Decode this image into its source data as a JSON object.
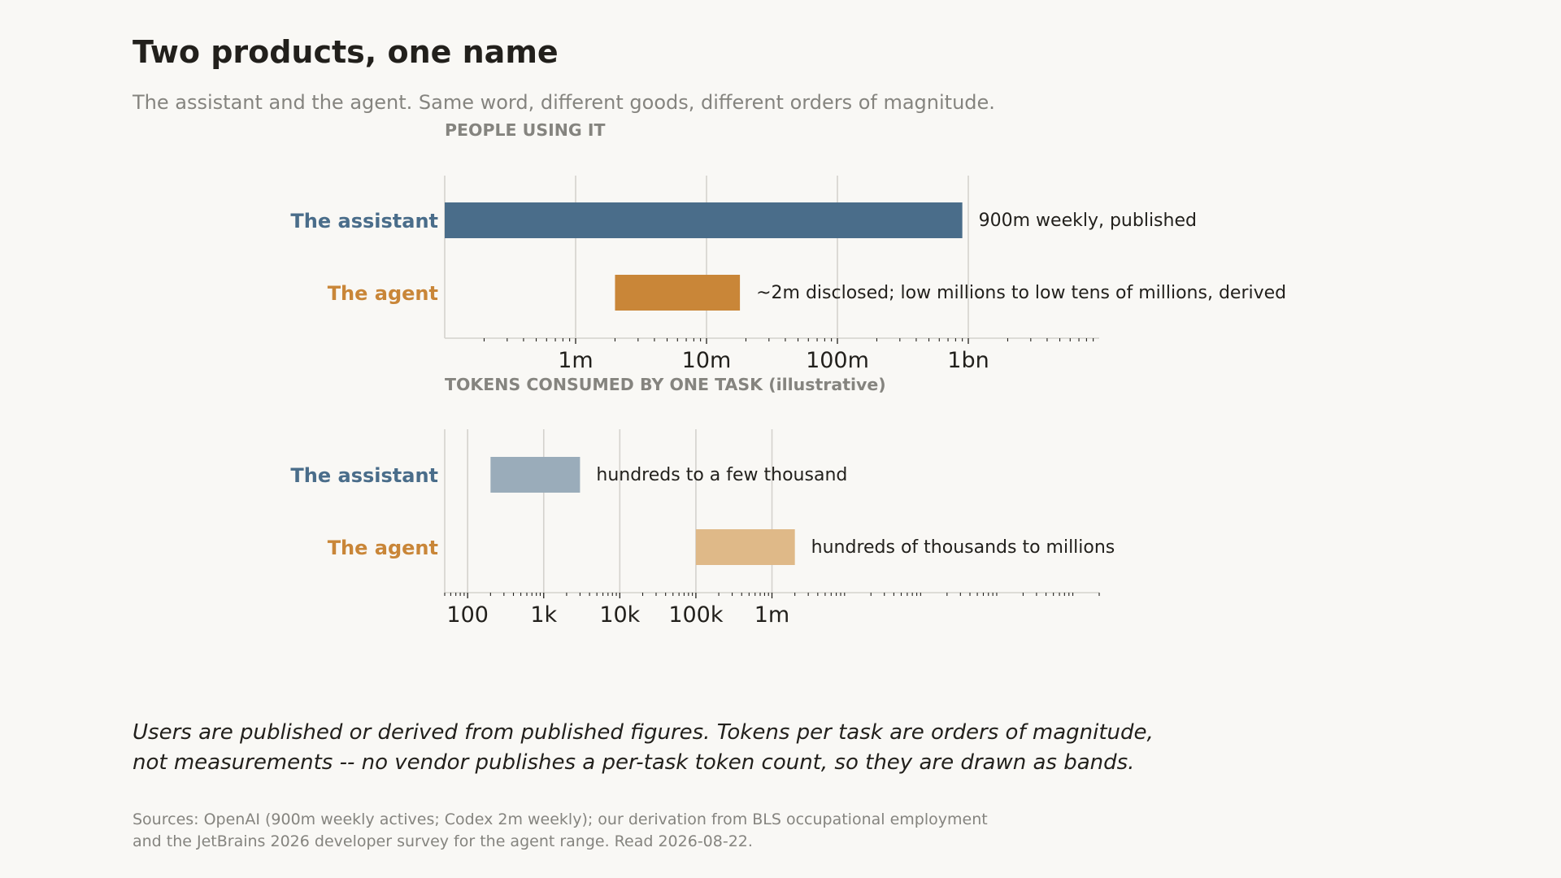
{
  "title": "Two products, one name",
  "subtitle": "The assistant and the agent. Same word, different goods, different orders of magnitude.",
  "colors": {
    "assistant": "#4a6d8a",
    "agent": "#c98638",
    "assistant_light": "#9aacba",
    "agent_light": "#dfb988",
    "muted": "#85847f",
    "ink": "#22201c",
    "grid": "#d4d2cd"
  },
  "chart_data": [
    {
      "type": "bar",
      "orientation": "horizontal",
      "title": "PEOPLE USING IT",
      "xscale": "log",
      "xlim": [
        100000,
        10000000000
      ],
      "xticks": [
        1000000,
        10000000,
        100000000,
        1000000000
      ],
      "xtick_labels": [
        "1m",
        "10m",
        "100m",
        "1bn"
      ],
      "grid": true,
      "rows": [
        {
          "label": "The assistant",
          "start": 100000,
          "end": 900000000,
          "bar_label": "900m  weekly, published",
          "style": "solid"
        },
        {
          "label": "The agent",
          "start": 2000000,
          "end": 18000000,
          "bar_label": "~2m disclosed; low millions to low tens of millions, derived",
          "style": "solid"
        }
      ]
    },
    {
      "type": "bar",
      "orientation": "horizontal",
      "title": "TOKENS CONSUMED BY ONE TASK  (illustrative)",
      "xscale": "log",
      "xlim": [
        50,
        20000000000
      ],
      "xticks": [
        100,
        1000,
        10000,
        100000,
        1000000
      ],
      "xtick_labels": [
        "100",
        "1k",
        "10k",
        "100k",
        "1m"
      ],
      "grid": true,
      "rows": [
        {
          "label": "The assistant",
          "start": 200,
          "end": 3000,
          "bar_label": "hundreds to a few thousand",
          "style": "band"
        },
        {
          "label": "The agent",
          "start": 100000,
          "end": 2000000,
          "bar_label": "hundreds of thousands to millions",
          "style": "band"
        }
      ]
    }
  ],
  "note": [
    "Users are published or derived from published figures. Tokens per task are orders of magnitude,",
    "not measurements -- no vendor publishes a per-task token count, so they are drawn as bands."
  ],
  "sources": [
    "Sources: OpenAI (900m weekly actives; Codex 2m weekly); our derivation from BLS occupational employment",
    "and the JetBrains 2026 developer survey for the agent range. Read 2026-08-22."
  ]
}
